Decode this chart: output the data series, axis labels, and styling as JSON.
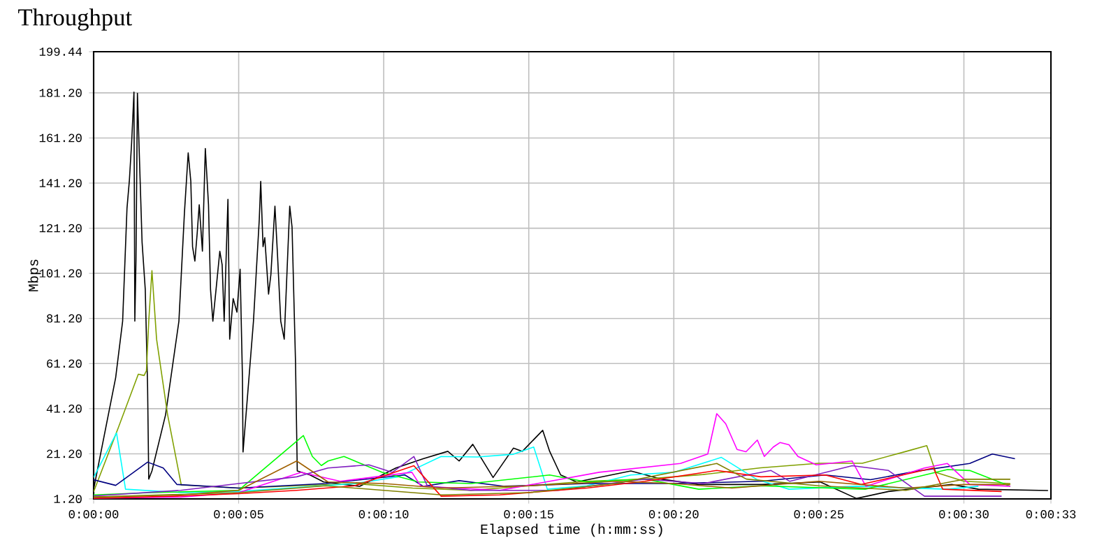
{
  "chart_data": {
    "type": "line",
    "title": "Throughput",
    "xlabel": "Elapsed time (h:mm:ss)",
    "ylabel": "Mbps",
    "xlim": [
      0,
      33
    ],
    "ylim": [
      1.2,
      199.44
    ],
    "xticks": [
      {
        "value": 0,
        "label": "0:00:00"
      },
      {
        "value": 5,
        "label": "0:00:05"
      },
      {
        "value": 10,
        "label": "0:00:10"
      },
      {
        "value": 15,
        "label": "0:00:15"
      },
      {
        "value": 20,
        "label": "0:00:20"
      },
      {
        "value": 25,
        "label": "0:00:25"
      },
      {
        "value": 30,
        "label": "0:00:30"
      },
      {
        "value": 33,
        "label": "0:00:33"
      }
    ],
    "yticks": [
      {
        "value": 1.2,
        "label": "1.20"
      },
      {
        "value": 21.2,
        "label": "21.20"
      },
      {
        "value": 41.2,
        "label": "41.20"
      },
      {
        "value": 61.2,
        "label": "61.20"
      },
      {
        "value": 81.2,
        "label": "81.20"
      },
      {
        "value": 101.2,
        "label": "101.20"
      },
      {
        "value": 121.2,
        "label": "121.20"
      },
      {
        "value": 141.2,
        "label": "141.20"
      },
      {
        "value": 161.2,
        "label": "161.20"
      },
      {
        "value": 181.2,
        "label": "181.20"
      },
      {
        "value": 199.44,
        "label": "199.44"
      }
    ],
    "grid": true,
    "marker": "none",
    "line_style": "solid",
    "series": [
      {
        "color": "#000000",
        "x": [
          0,
          0.76,
          1.0,
          1.15,
          1.23,
          1.31,
          1.36,
          1.39,
          1.42,
          1.46,
          1.51,
          1.57,
          1.67,
          1.78,
          1.86,
          1.9,
          2.01,
          2.48,
          2.94,
          3.13,
          3.26,
          3.35,
          3.41,
          3.49,
          3.57,
          3.64,
          3.75,
          3.85,
          3.96,
          4.03,
          4.11,
          4.22,
          4.35,
          4.43,
          4.5,
          4.63,
          4.69,
          4.81,
          4.94,
          5.05,
          5.13,
          5.15,
          5.28,
          5.51,
          5.71,
          5.76,
          5.84,
          5.9,
          6.03,
          6.11,
          6.25,
          6.34,
          6.45,
          6.57,
          6.76,
          6.84,
          6.96,
          7.02,
          7.46,
          7.93,
          9.17,
          10.42,
          11.36,
          12.21,
          12.6,
          13.07,
          13.77,
          14.47,
          14.78,
          15.48,
          15.72,
          16.1,
          16.65,
          18.52,
          19.6,
          20.86,
          23.04,
          25.05,
          26.3,
          27.4,
          29.58,
          30.5,
          32.9
        ],
        "values": [
          5.5,
          55,
          80,
          130,
          142,
          159,
          173,
          181.5,
          80,
          107,
          181,
          156,
          115,
          94,
          51,
          10,
          13.6,
          38.5,
          80,
          128,
          154.6,
          142,
          113,
          106.6,
          119,
          131.6,
          111,
          156.5,
          131.6,
          94,
          80,
          94,
          111,
          105,
          80,
          134,
          72,
          90,
          84,
          103,
          55,
          22,
          42.8,
          80,
          125,
          142,
          113,
          117,
          92,
          100.6,
          131,
          109,
          80,
          72,
          131,
          121.7,
          61.5,
          13.6,
          11.8,
          8.7,
          6.8,
          14.9,
          19,
          22.3,
          18,
          25.4,
          10.7,
          23.7,
          22.3,
          31.6,
          22.3,
          11.8,
          8.7,
          13.6,
          9.9,
          7.6,
          7.6,
          8.7,
          1.4,
          4.5,
          7.6,
          5.5,
          4.9
        ]
      },
      {
        "color": "#80a000",
        "x": [
          0,
          0.84,
          1.54,
          1.74,
          1.82,
          1.9,
          2.01,
          2.17,
          2.55,
          3.02,
          5,
          7,
          9,
          11,
          13,
          15,
          17,
          19,
          21,
          23,
          25,
          26.5,
          28.02,
          28.72,
          29.03,
          30,
          31.6
        ],
        "values": [
          4.4,
          32.4,
          56.5,
          55.9,
          58,
          80,
          102.4,
          72,
          38.5,
          7.4,
          6,
          7,
          8,
          6,
          5,
          7,
          9,
          10,
          12,
          15,
          17,
          17,
          22.3,
          24.8,
          13,
          9,
          8
        ]
      },
      {
        "color": "#00ffff",
        "x": [
          0,
          0.79,
          1.1,
          3,
          5,
          9,
          10.5,
          11.98,
          13.22,
          14.47,
          15.17,
          15.64,
          17,
          18.52,
          20,
          21.64,
          22.88,
          23.97,
          26.3,
          29.43,
          30.5
        ],
        "values": [
          10.7,
          30.4,
          5.5,
          4,
          4.5,
          8,
          11,
          20,
          19.8,
          21,
          24.2,
          5.5,
          7,
          11.8,
          13,
          19.6,
          9.7,
          5.5,
          6.8,
          5.5,
          6.8
        ]
      },
      {
        "color": "#000080",
        "x": [
          0,
          0.76,
          1.86,
          2.4,
          2.87,
          5,
          8,
          10.73,
          11.36,
          12.6,
          14.16,
          17,
          20,
          23,
          25.22,
          26.78,
          28.33,
          30.2,
          30.98,
          31.76
        ],
        "values": [
          9.7,
          7.2,
          17.5,
          14.9,
          7.6,
          6,
          8,
          11.8,
          6.8,
          9.3,
          6.8,
          8,
          8,
          9,
          11.8,
          9.7,
          13.4,
          16.9,
          21.1,
          19
        ]
      },
      {
        "color": "#00ff00",
        "x": [
          0,
          2,
          5,
          7.23,
          7.54,
          7.85,
          8.08,
          8.63,
          9.95,
          11.2,
          13,
          15.72,
          17,
          19,
          20.86,
          23,
          26.6,
          29.43,
          30.2,
          31.6
        ],
        "values": [
          3,
          4,
          5,
          29.3,
          20,
          16,
          18,
          20,
          13,
          8.7,
          8,
          11.8,
          8.7,
          10,
          5.5,
          7,
          5.5,
          14.2,
          13.8,
          6.8
        ]
      },
      {
        "color": "#ff00ff",
        "x": [
          0,
          3,
          5,
          7.15,
          8.5,
          10.97,
          11.28,
          14,
          17.43,
          20.23,
          21.17,
          21.48,
          21.79,
          22.18,
          22.49,
          22.88,
          23.12,
          23.43,
          23.66,
          23.97,
          24.28,
          24.91,
          26.15,
          26.62,
          28.64,
          29.43,
          30.2,
          31.6
        ],
        "values": [
          1.5,
          2,
          4,
          13,
          9,
          13,
          6.8,
          5,
          13,
          16.9,
          21.1,
          39,
          34.5,
          23.1,
          22.1,
          27.3,
          20,
          24.2,
          26.2,
          25.2,
          20,
          16.3,
          18,
          6.8,
          14.9,
          16.9,
          7.6,
          6.8
        ]
      },
      {
        "color": "#8020c0",
        "x": [
          0,
          3,
          5,
          7,
          8.08,
          9.49,
          10.3,
          11.04,
          11.51,
          13,
          16,
          19,
          21,
          23.35,
          24,
          26.15,
          27.4,
          28.64,
          31.3
        ],
        "values": [
          2.5,
          5,
          8,
          11,
          14.9,
          16.3,
          13,
          20,
          6.8,
          5,
          5,
          10,
          8,
          13.8,
          9,
          15.9,
          13.8,
          2.4,
          2.4
        ]
      },
      {
        "color": "#ff0000",
        "x": [
          0,
          3,
          5,
          7,
          9,
          11.04,
          11.98,
          14,
          17,
          19,
          21.48,
          23,
          25.22,
          26.46,
          28.95,
          29.27,
          31.3
        ],
        "values": [
          1.5,
          2.5,
          3.5,
          5,
          7,
          15.9,
          2.4,
          3,
          6,
          9,
          13.8,
          11,
          11.8,
          7.6,
          14.9,
          5.5,
          4.5
        ]
      },
      {
        "color": "#a06000",
        "x": [
          0,
          3,
          5,
          7,
          8.08,
          10,
          12,
          15,
          18,
          20,
          22,
          25,
          28,
          30,
          31.6
        ],
        "values": [
          2,
          3,
          5,
          18,
          8.7,
          8,
          6,
          7,
          9,
          8,
          6,
          9,
          6,
          7.6,
          7.6
        ]
      },
      {
        "color": "#808000",
        "x": [
          0,
          5,
          8,
          10,
          12,
          15,
          18,
          21.48,
          22.5,
          25,
          28,
          30,
          31.6
        ],
        "values": [
          2,
          4,
          7,
          5,
          3,
          4,
          8,
          16.9,
          10,
          7,
          5,
          9.9,
          9.9
        ]
      }
    ]
  }
}
